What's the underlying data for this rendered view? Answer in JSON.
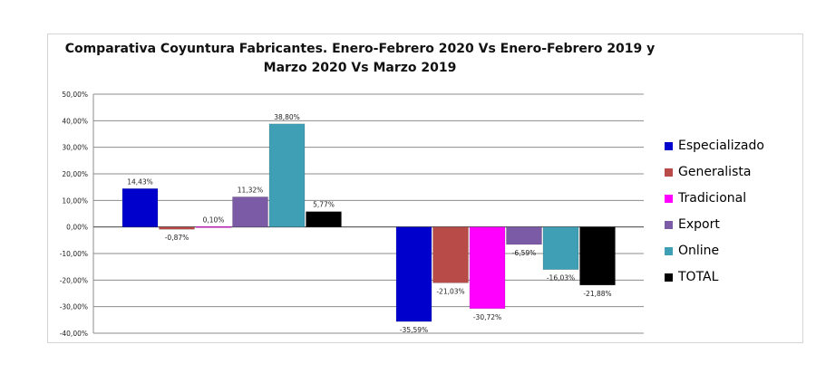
{
  "chart_data": {
    "type": "bar",
    "title": "Comparativa Coyuntura Fabricantes. Enero-Febrero 2020 Vs Enero-Febrero 2019 y",
    "subtitle": "Marzo 2020 Vs Marzo 2019",
    "xlabel": "",
    "ylabel": "",
    "categories": [
      "",
      ""
    ],
    "ylim": [
      -40,
      50
    ],
    "yticks": [
      "50,00%",
      "40,00%",
      "30,00%",
      "20,00%",
      "10,00%",
      "0,00%",
      "-10,00%",
      "-20,00%",
      "-30,00%",
      "-40,00%"
    ],
    "grid": true,
    "legend_position": "right",
    "series": [
      {
        "name": "Especializado",
        "color": "#0000cc",
        "values": [
          14.43,
          -35.59
        ],
        "labels": [
          "14,43%",
          "-35,59%"
        ]
      },
      {
        "name": "Generalista",
        "color": "#b84a47",
        "values": [
          -0.87,
          -21.03
        ],
        "labels": [
          "-0,87%",
          "-21,03%"
        ]
      },
      {
        "name": "Tradicional",
        "color": "#ff00ff",
        "values": [
          0.1,
          -30.72
        ],
        "labels": [
          "0,10%",
          "-30,72%"
        ]
      },
      {
        "name": "Export",
        "color": "#7b5aa6",
        "values": [
          11.32,
          -6.59
        ],
        "labels": [
          "11,32%",
          "-6,59%"
        ]
      },
      {
        "name": "Online",
        "color": "#3fa0b5",
        "values": [
          38.8,
          -16.03
        ],
        "labels": [
          "38,80%",
          "-16,03%"
        ]
      },
      {
        "name": "TOTAL",
        "color": "#000000",
        "values": [
          5.77,
          -21.88
        ],
        "labels": [
          "5,77%",
          "-21,88%"
        ]
      }
    ]
  }
}
